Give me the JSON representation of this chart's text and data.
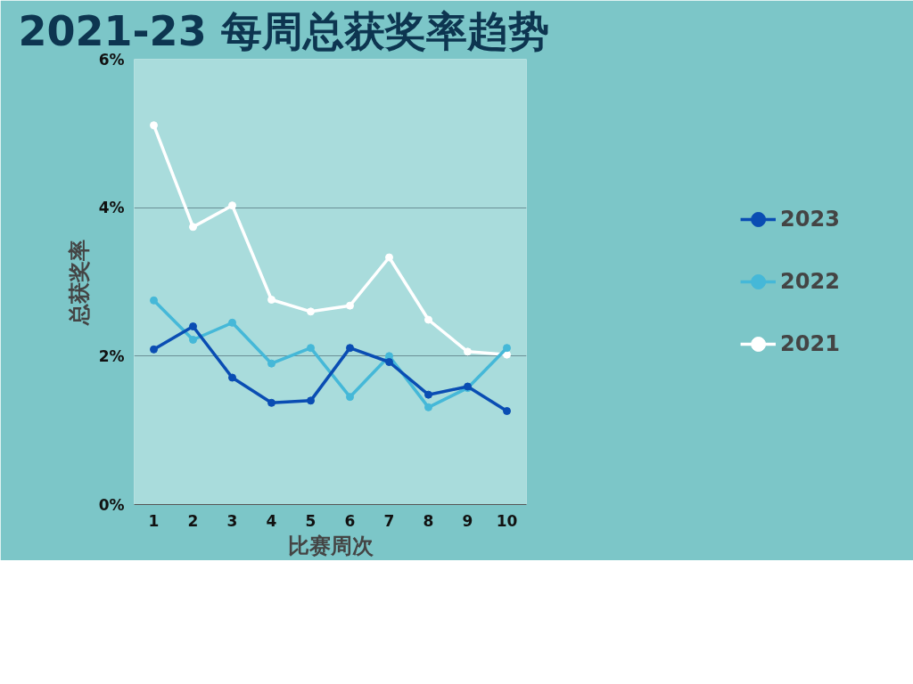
{
  "chart_data": {
    "type": "line",
    "title": "2021-23 每周总获奖率趋势",
    "xlabel": "比赛周次",
    "ylabel": "总获奖率",
    "x": [
      1,
      2,
      3,
      4,
      5,
      6,
      7,
      8,
      9,
      10
    ],
    "series": [
      {
        "name": "2023",
        "color": "#0a4db3",
        "values": [
          2.09,
          2.4,
          1.71,
          1.37,
          1.4,
          2.11,
          1.92,
          1.48,
          1.59,
          1.26
        ]
      },
      {
        "name": "2022",
        "color": "#45b8d8",
        "values": [
          2.75,
          2.22,
          2.45,
          1.9,
          2.11,
          1.45,
          2.0,
          1.31,
          1.57,
          2.11
        ]
      },
      {
        "name": "2021",
        "color": "#ffffff",
        "values": [
          5.11,
          3.74,
          4.03,
          2.76,
          2.6,
          2.68,
          3.33,
          2.49,
          2.06,
          2.02
        ]
      }
    ],
    "xlim": [
      0.5,
      10.5
    ],
    "xticks": [
      1,
      2,
      3,
      4,
      5,
      6,
      7,
      8,
      9,
      10
    ],
    "ylim": [
      0,
      6
    ],
    "yticks": [
      {
        "value": 0,
        "label": "0%"
      },
      {
        "value": 2,
        "label": "2%"
      },
      {
        "value": 4,
        "label": "4%"
      },
      {
        "value": 6,
        "label": "6%"
      }
    ],
    "grid": "y",
    "legend": "right",
    "marker": "circle",
    "line_style": "solid"
  }
}
